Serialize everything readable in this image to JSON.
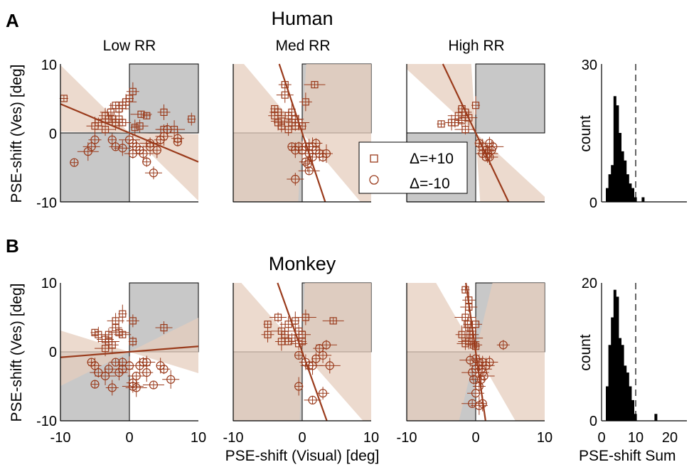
{
  "colors": {
    "marker": "#9a3b1c",
    "shade_quadrant": "#c8c8c8",
    "ci_band": "#e6cdbd",
    "hist_bar": "#000000",
    "axis": "#000000"
  },
  "panel_labels": {
    "a": "A",
    "b": "B"
  },
  "legend": {
    "plus": "Δ=+10",
    "minus": "Δ=-10",
    "plus_marker": "square",
    "minus_marker": "circle"
  },
  "chart_data": [
    {
      "id": "A-low",
      "type": "scatter",
      "row": "Human",
      "title": "Low RR",
      "xlim": [
        -10,
        10
      ],
      "ylim": [
        -10,
        10
      ],
      "ylabel": "PSE-shift (Ves) [deg]",
      "yticks": [
        -10,
        0,
        10
      ],
      "fit_slope": -0.42,
      "fit_intercept": 0.0,
      "plus": [
        [
          -9.5,
          5
        ],
        [
          -3.5,
          2.5
        ],
        [
          -3,
          2
        ],
        [
          -2.7,
          3
        ],
        [
          -2.5,
          2
        ],
        [
          -2,
          4
        ],
        [
          -2,
          1.5
        ],
        [
          -1.5,
          3.5
        ],
        [
          -1.5,
          2
        ],
        [
          -1,
          4
        ],
        [
          -1,
          1.5
        ],
        [
          -0.5,
          4.5
        ],
        [
          0,
          5
        ],
        [
          0.5,
          6
        ],
        [
          1.5,
          1
        ],
        [
          1.7,
          2.7
        ],
        [
          0.8,
          0.8
        ],
        [
          -4.5,
          1.5
        ],
        [
          -5,
          1
        ],
        [
          -3.5,
          0.5
        ],
        [
          2.5,
          2.5
        ],
        [
          5,
          3
        ],
        [
          5,
          0.5
        ],
        [
          6.5,
          0.5
        ],
        [
          9,
          2
        ]
      ],
      "minus": [
        [
          -8,
          -4.3
        ],
        [
          -5,
          -1
        ],
        [
          -5.5,
          -2
        ],
        [
          -6,
          -2.7
        ],
        [
          -2.5,
          -1
        ],
        [
          -2,
          -2
        ],
        [
          -1,
          -2.2
        ],
        [
          0,
          -1
        ],
        [
          0.5,
          -1.5
        ],
        [
          1,
          -2
        ],
        [
          1.5,
          -2.5
        ],
        [
          2,
          -3
        ],
        [
          2.5,
          -4.2
        ],
        [
          3,
          -2
        ],
        [
          3.5,
          -5.8
        ],
        [
          3,
          -1.5
        ],
        [
          4,
          -2.5
        ],
        [
          4.5,
          -1
        ],
        [
          5,
          -0.5
        ],
        [
          5.5,
          0.5
        ],
        [
          7,
          -1.3
        ],
        [
          7,
          -0.8
        ],
        [
          0.5,
          -3
        ]
      ]
    },
    {
      "id": "A-med",
      "type": "scatter",
      "row": "Human",
      "title": "Med RR",
      "xlim": [
        -10,
        10
      ],
      "ylim": [
        -10,
        10
      ],
      "fit_slope": -3.0,
      "fit_intercept": 0.0,
      "plus": [
        [
          -4,
          3.5
        ],
        [
          -4,
          2.5
        ],
        [
          -3.5,
          3
        ],
        [
          -3,
          1.7
        ],
        [
          -3,
          1
        ],
        [
          -2.5,
          7
        ],
        [
          -2.5,
          5.5
        ],
        [
          -2,
          2.5
        ],
        [
          -1.5,
          3
        ],
        [
          -1.5,
          1.5
        ],
        [
          -1,
          2
        ],
        [
          -0.5,
          1.5
        ],
        [
          0,
          1
        ],
        [
          0.5,
          4.5
        ],
        [
          -2,
          0.5
        ],
        [
          1.8,
          7
        ],
        [
          -3.5,
          1.5
        ],
        [
          -1,
          1
        ]
      ],
      "minus": [
        [
          -1.5,
          -2
        ],
        [
          -1,
          -2.5
        ],
        [
          -0.5,
          -2
        ],
        [
          0,
          -2.5
        ],
        [
          0.5,
          -2
        ],
        [
          0.5,
          -4.2
        ],
        [
          1,
          -2
        ],
        [
          1,
          -3
        ],
        [
          1.5,
          -2
        ],
        [
          1.5,
          -3.5
        ],
        [
          2,
          -2.5
        ],
        [
          2.5,
          -3
        ],
        [
          3,
          -3.5
        ],
        [
          3.5,
          -3
        ],
        [
          -1,
          -6.7
        ],
        [
          1,
          -5.5
        ],
        [
          0.8,
          -4.5
        ],
        [
          2,
          -1.5
        ]
      ]
    },
    {
      "id": "A-high",
      "type": "scatter",
      "row": "Human",
      "title": "High RR",
      "xlim": [
        -10,
        10
      ],
      "ylim": [
        -10,
        10
      ],
      "fit_slope": -2.1,
      "fit_intercept": 0.0,
      "plus": [
        [
          -5,
          1.3
        ],
        [
          -3.5,
          1.5
        ],
        [
          -3,
          1.5
        ],
        [
          -2.5,
          2.5
        ],
        [
          -2,
          3.5
        ],
        [
          -1.5,
          3
        ],
        [
          -1,
          2.2
        ],
        [
          -1.5,
          0.5
        ],
        [
          0,
          4
        ],
        [
          -2,
          1.8
        ]
      ],
      "minus": [
        [
          0.5,
          -1.5
        ],
        [
          1,
          -2
        ],
        [
          1.5,
          -2.5
        ],
        [
          1.7,
          -3
        ],
        [
          2,
          -1.5
        ],
        [
          1.5,
          -3.5
        ],
        [
          2,
          -3.5
        ],
        [
          2.5,
          -2
        ],
        [
          2.3,
          -2.5
        ],
        [
          1,
          -3
        ]
      ]
    },
    {
      "id": "A-hist",
      "type": "bar",
      "row": "Human",
      "xlim": [
        0,
        25
      ],
      "ylim": [
        0,
        30
      ],
      "yticks": [
        0,
        30
      ],
      "ylabel": "count",
      "dashed_x": 10,
      "bin_width": 0.75,
      "bins": [
        0.5,
        1.25,
        2.0,
        2.75,
        3.5,
        4.25,
        5.0,
        5.75,
        6.5,
        7.25,
        8.0,
        8.75,
        9.5,
        10.25,
        11.0,
        11.75
      ],
      "values": [
        0,
        3,
        6,
        8,
        23,
        21,
        15,
        11,
        9,
        6,
        4,
        3,
        1,
        0,
        0,
        1
      ]
    },
    {
      "id": "B-low",
      "type": "scatter",
      "row": "Monkey",
      "xlim": [
        -10,
        10
      ],
      "ylim": [
        -10,
        10
      ],
      "ylabel": "PSE-shift (Ves) [deg]",
      "yticks": [
        -10,
        0,
        10
      ],
      "xticks": [
        -10,
        0,
        10
      ],
      "fit_slope": 0.08,
      "fit_intercept": 0.0,
      "plus": [
        [
          -5,
          2.8
        ],
        [
          -4.5,
          2.5
        ],
        [
          -3.5,
          1.8
        ],
        [
          -3,
          1.5
        ],
        [
          -3,
          2.5
        ],
        [
          -2,
          3.5
        ],
        [
          -2,
          4.5
        ],
        [
          -1.5,
          2.8
        ],
        [
          -1,
          5.5
        ],
        [
          0.5,
          4.5
        ],
        [
          -1,
          2.5
        ],
        [
          -3.5,
          0.5
        ],
        [
          0.5,
          1.5
        ],
        [
          -2.5,
          1
        ],
        [
          5,
          3.5
        ]
      ],
      "minus": [
        [
          -5.5,
          -1.5
        ],
        [
          -5,
          -2
        ],
        [
          -4.5,
          -3
        ],
        [
          -3.5,
          -3.5
        ],
        [
          -3,
          -2.5
        ],
        [
          -2,
          -1.5
        ],
        [
          -1.5,
          -3
        ],
        [
          -1,
          -2.5
        ],
        [
          0,
          -2
        ],
        [
          0.5,
          -4.5
        ],
        [
          1,
          -3.5
        ],
        [
          1.5,
          -2
        ],
        [
          2,
          -1.5
        ],
        [
          2.5,
          -3
        ],
        [
          2.5,
          -1.5
        ],
        [
          3.5,
          -4.8
        ],
        [
          4.5,
          -2
        ],
        [
          5,
          -2.5
        ],
        [
          6,
          -4
        ],
        [
          0.5,
          -5
        ],
        [
          -5,
          -4.7
        ],
        [
          -2.5,
          -5.2
        ],
        [
          -1,
          -1.5
        ],
        [
          1,
          -5.2
        ]
      ]
    },
    {
      "id": "B-med",
      "type": "scatter",
      "row": "Monkey",
      "xlim": [
        -10,
        10
      ],
      "ylim": [
        -10,
        10
      ],
      "xticks": [
        -10,
        0,
        10
      ],
      "fit_slope": -2.8,
      "fit_intercept": 0.0,
      "plus": [
        [
          -5,
          4
        ],
        [
          -5,
          2.5
        ],
        [
          -3.5,
          5
        ],
        [
          -3,
          3
        ],
        [
          -2.5,
          2.5
        ],
        [
          -2,
          1.5
        ],
        [
          -2,
          4
        ],
        [
          -1.5,
          2
        ],
        [
          -1,
          4.5
        ],
        [
          -0.5,
          3
        ],
        [
          0,
          2.5
        ],
        [
          0.5,
          5
        ],
        [
          0,
          1.5
        ],
        [
          -3,
          1.5
        ],
        [
          -0.5,
          1.2
        ],
        [
          4.5,
          4.5
        ]
      ],
      "minus": [
        [
          -0.5,
          -0.5
        ],
        [
          0.5,
          -1.5
        ],
        [
          1,
          -2
        ],
        [
          1.5,
          -2
        ],
        [
          2,
          -1
        ],
        [
          2.5,
          0.5
        ],
        [
          3,
          -0.5
        ],
        [
          3.5,
          1
        ],
        [
          -0.5,
          -5
        ],
        [
          3,
          -6
        ],
        [
          1.5,
          -7
        ],
        [
          4,
          -2
        ]
      ]
    },
    {
      "id": "B-high",
      "type": "scatter",
      "row": "Monkey",
      "xlim": [
        -10,
        10
      ],
      "ylim": [
        -10,
        10
      ],
      "xticks": [
        -10,
        0,
        10
      ],
      "fit_slope": -7.0,
      "fit_intercept": 0.0,
      "plus": [
        [
          -1.5,
          9
        ],
        [
          -1,
          7.5
        ],
        [
          -1,
          6.5
        ],
        [
          -1.5,
          5
        ],
        [
          -1.2,
          4
        ],
        [
          -1,
          3.5
        ],
        [
          -0.8,
          2.5
        ],
        [
          -0.5,
          2
        ],
        [
          -0.5,
          3
        ],
        [
          0,
          4
        ],
        [
          -0.3,
          1
        ],
        [
          -1,
          1.5
        ],
        [
          0,
          0.8
        ],
        [
          -2,
          2.5
        ],
        [
          -1.5,
          1.2
        ]
      ],
      "minus": [
        [
          0,
          -1
        ],
        [
          0.5,
          -1.5
        ],
        [
          0.5,
          -2
        ],
        [
          0.8,
          -2.5
        ],
        [
          1,
          -1.5
        ],
        [
          1,
          -3
        ],
        [
          1.5,
          -2
        ],
        [
          1.2,
          -3.5
        ],
        [
          0.8,
          -4
        ],
        [
          0.5,
          -5
        ],
        [
          0,
          -6
        ],
        [
          -0.5,
          -3
        ],
        [
          -0.3,
          -4
        ],
        [
          0,
          -2.5
        ],
        [
          2,
          -1.5
        ],
        [
          -0.5,
          -7.5
        ],
        [
          1,
          -7.5
        ],
        [
          4,
          1
        ],
        [
          0.5,
          -7.8
        ],
        [
          -0.8,
          -1.2
        ]
      ]
    },
    {
      "id": "B-hist",
      "type": "bar",
      "row": "Monkey",
      "xlim": [
        0,
        25
      ],
      "ylim": [
        0,
        20
      ],
      "yticks": [
        0,
        20
      ],
      "xticks": [
        0,
        10,
        20
      ],
      "ylabel": "count",
      "dashed_x": 10,
      "bin_width": 0.75,
      "bins": [
        0.5,
        1.25,
        2.0,
        2.75,
        3.5,
        4.25,
        5.0,
        5.75,
        6.5,
        7.25,
        8.0,
        8.75,
        9.5,
        10.25,
        11.0,
        11.75,
        12.5,
        13.25,
        14.0,
        14.75,
        15.5
      ],
      "values": [
        0,
        5,
        11,
        15,
        19,
        18,
        12,
        11,
        8,
        7,
        5,
        3,
        1,
        0,
        0,
        0,
        0,
        0,
        0,
        0,
        1
      ]
    }
  ],
  "row_titles": {
    "human": "Human",
    "monkey": "Monkey"
  },
  "col_titles": {
    "low": "Low RR",
    "med": "Med RR",
    "high": "High RR"
  },
  "axis_labels": {
    "y_top": "PSE-shift (Ves) [deg]",
    "y_bottom": "PSE-shift (Ves) [deg]",
    "x_bottom": "PSE-shift (Visual) [deg]",
    "hist_y": "count",
    "hist_x": "PSE-shift Sum"
  },
  "tick_labels": {
    "y10": "10",
    "y0": "0",
    "yneg10": "-10",
    "xneg10": "-10",
    "x0": "0",
    "x10": "10",
    "hist_top_30": "30",
    "hist_top_0": "0",
    "hist_bot_20": "20",
    "hist_bot_0": "0",
    "hist_x0": "0",
    "hist_x10": "10",
    "hist_x20": "20"
  }
}
